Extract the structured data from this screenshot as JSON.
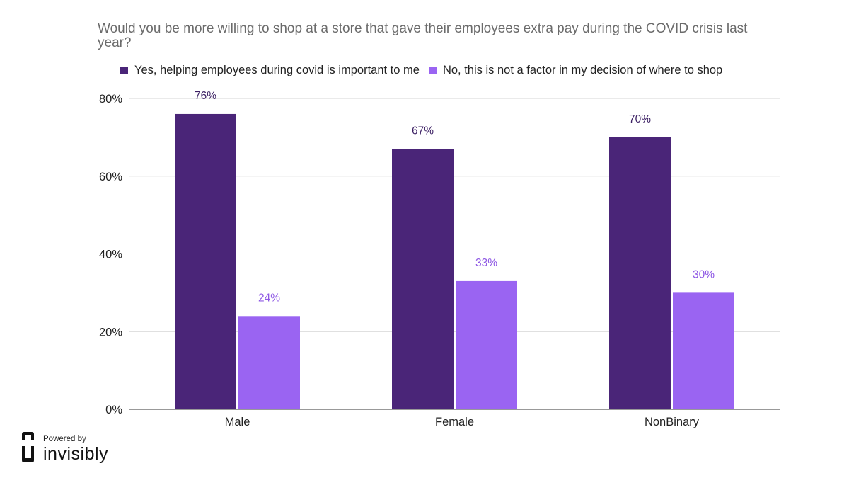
{
  "chart_data": {
    "type": "bar",
    "title": "Would you be more willing to shop at a store that gave their employees extra pay during the COVID crisis last year?",
    "categories": [
      "Male",
      "Female",
      "NonBinary"
    ],
    "series": [
      {
        "name": "Yes, helping employees during covid is important to me",
        "values": [
          76,
          67,
          70
        ],
        "labels": [
          "76%",
          "67%",
          "70%"
        ],
        "color": "#4a2578",
        "label_color": "#3b1f63"
      },
      {
        "name": "No, this is not a factor in my decision of where to shop",
        "values": [
          24,
          33,
          30
        ],
        "labels": [
          "24%",
          "33%",
          "30%"
        ],
        "color": "#9a64f2",
        "label_color": "#8e58e4"
      }
    ],
    "yticks": [
      0,
      20,
      40,
      60,
      80
    ],
    "ytick_labels": [
      "0%",
      "20%",
      "40%",
      "60%",
      "80%"
    ],
    "ylim": [
      0,
      80
    ],
    "grid": true,
    "legend_position": "top"
  },
  "brand": {
    "powered_by": "Powered by",
    "name": "invisibly"
  }
}
